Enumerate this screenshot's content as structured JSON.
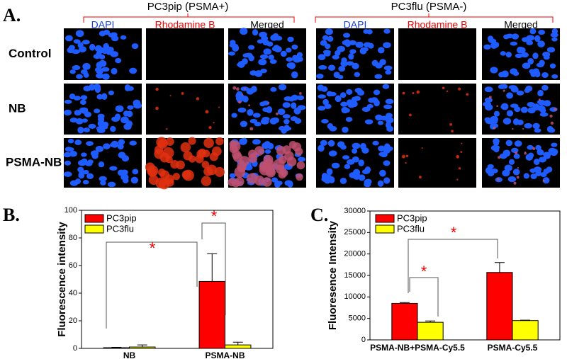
{
  "figure": {
    "panels": [
      "A.",
      "B.",
      "C."
    ],
    "groups": [
      "PC3pip (PSMA+)",
      "PC3flu (PSMA-)"
    ],
    "columns": [
      "DAPI",
      "Rhodamine B",
      "Merged",
      "DAPI",
      "Rhodamine B",
      "Merged"
    ],
    "rows": [
      "Control",
      "NB",
      "PSMA-NB"
    ]
  },
  "chart_data": [
    {
      "type": "bar",
      "ylabel": "Fluorescence intensity",
      "categories": [
        "NB",
        "PSMA-NB"
      ],
      "series": [
        {
          "name": "PC3pip",
          "color": "#ff0000",
          "values": [
            0.5,
            48.5
          ],
          "errors": [
            0.3,
            20
          ]
        },
        {
          "name": "PC3flu",
          "color": "#ffff00",
          "values": [
            1,
            2.5
          ],
          "errors": [
            1.5,
            2
          ]
        }
      ],
      "ylim": [
        0,
        100
      ],
      "yticks": [
        0,
        20,
        40,
        60,
        80,
        100
      ],
      "annotations": [
        "*",
        "*"
      ]
    },
    {
      "type": "bar",
      "ylabel": "Fluoresence Intensity",
      "categories": [
        "PSMA-NB+PSMA-Cy5.5",
        "PSMA-Cy5.5"
      ],
      "series": [
        {
          "name": "PC3pip",
          "color": "#ff0000",
          "values": [
            8500,
            15700
          ],
          "errors": [
            200,
            2300
          ]
        },
        {
          "name": "PC3flu",
          "color": "#ffff00",
          "values": [
            4100,
            4500
          ],
          "errors": [
            300,
            100
          ]
        }
      ],
      "ylim": [
        0,
        30000
      ],
      "yticks": [
        0,
        5000,
        10000,
        15000,
        20000,
        25000,
        30000
      ],
      "annotations": [
        "*",
        "*"
      ]
    }
  ]
}
